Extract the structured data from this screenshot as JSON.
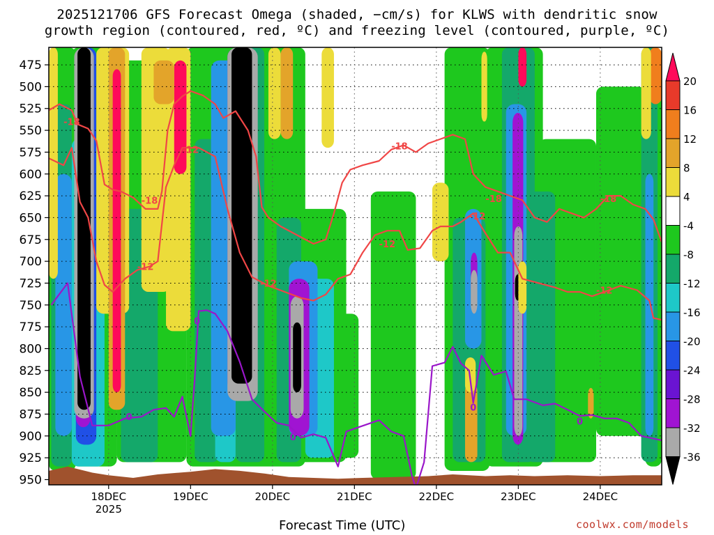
{
  "title_line1": "2025121706 GFS Forecast Omega (shaded, −cm/s) for KLWS with dendritic snow",
  "title_line2": "growth region (contoured, red, ºC) and freezing level (contoured, purple, ºC)",
  "xlabel": "Forecast Time (UTC)",
  "credit": "coolwx.com/models",
  "chart_data": {
    "type": "heatmap",
    "title": "2025121706 GFS Forecast Omega (shaded, −cm/s) for KLWS with dendritic snow growth region (contoured, red, ºC) and freezing level (contoured, purple, ºC)",
    "xlabel": "Forecast Time (UTC)",
    "ylabel": "",
    "x_tick_labels": [
      "18DEC",
      "19DEC",
      "20DEC",
      "21DEC",
      "22DEC",
      "23DEC",
      "24DEC"
    ],
    "x_tick_sublabel": "2025",
    "x_range_days": [
      17.27,
      24.75
    ],
    "y_tick_labels": [
      475,
      500,
      525,
      550,
      575,
      600,
      625,
      650,
      675,
      700,
      725,
      750,
      775,
      800,
      825,
      850,
      875,
      900,
      925,
      950
    ],
    "y_range_hpa": [
      455,
      956
    ],
    "grid": true,
    "colorbar": {
      "label_values": [
        20,
        16,
        12,
        8,
        4,
        -4,
        -8,
        -12,
        -16,
        -20,
        -24,
        -28,
        -32,
        -36
      ],
      "colors": [
        "#ff0a5a",
        "#e83a2a",
        "#f07e1d",
        "#e3a42a",
        "#ecdc3a",
        "#ffffff",
        "#1ec81e",
        "#14a86a",
        "#1ec8c8",
        "#2896e6",
        "#2050e6",
        "#6a14d2",
        "#a014d2",
        "#a9a9a9",
        "#000000"
      ]
    },
    "freezing_level_contour": {
      "label": "0",
      "color": "#9a16c9",
      "points": [
        [
          17.3,
          750
        ],
        [
          17.5,
          725
        ],
        [
          17.65,
          832
        ],
        [
          17.8,
          888
        ],
        [
          18.0,
          888
        ],
        [
          18.2,
          880
        ],
        [
          18.4,
          878
        ],
        [
          18.55,
          870
        ],
        [
          18.7,
          868
        ],
        [
          18.8,
          878
        ],
        [
          18.9,
          855
        ],
        [
          19.0,
          900
        ],
        [
          19.05,
          835
        ],
        [
          19.1,
          757
        ],
        [
          19.2,
          756
        ],
        [
          19.3,
          760
        ],
        [
          19.45,
          780
        ],
        [
          19.6,
          815
        ],
        [
          19.75,
          858
        ],
        [
          19.9,
          872
        ],
        [
          20.05,
          885
        ],
        [
          20.2,
          888
        ],
        [
          20.35,
          902
        ],
        [
          20.5,
          898
        ],
        [
          20.65,
          902
        ],
        [
          20.8,
          935
        ],
        [
          20.9,
          895
        ],
        [
          21.05,
          890
        ],
        [
          21.3,
          882
        ],
        [
          21.45,
          895
        ],
        [
          21.6,
          900
        ],
        [
          21.7,
          945
        ],
        [
          21.75,
          960
        ],
        [
          21.85,
          930
        ],
        [
          21.95,
          820
        ],
        [
          22.1,
          816
        ],
        [
          22.2,
          798
        ],
        [
          22.3,
          817
        ],
        [
          22.4,
          825
        ],
        [
          22.45,
          862
        ],
        [
          22.55,
          808
        ],
        [
          22.7,
          830
        ],
        [
          22.85,
          826
        ],
        [
          22.95,
          858
        ],
        [
          23.1,
          858
        ],
        [
          23.3,
          865
        ],
        [
          23.45,
          863
        ],
        [
          23.6,
          870
        ],
        [
          23.75,
          877
        ],
        [
          23.9,
          876
        ],
        [
          24.05,
          880
        ],
        [
          24.2,
          880
        ],
        [
          24.35,
          885
        ],
        [
          24.5,
          900
        ],
        [
          24.75,
          905
        ]
      ],
      "label_positions": [
        [
          18.25,
          878
        ],
        [
          19.08,
          768
        ],
        [
          20.25,
          901
        ],
        [
          22.45,
          867
        ],
        [
          23.75,
          883
        ]
      ]
    },
    "snow_growth_contours": [
      {
        "label": "-18",
        "color": "#f04646",
        "points": [
          [
            17.27,
            527
          ],
          [
            17.4,
            520
          ],
          [
            17.55,
            527
          ],
          [
            17.62,
            543
          ],
          [
            17.75,
            548
          ],
          [
            17.85,
            562
          ],
          [
            17.95,
            612
          ],
          [
            18.05,
            618
          ],
          [
            18.15,
            620
          ],
          [
            18.3,
            627
          ],
          [
            18.45,
            640
          ],
          [
            18.6,
            640
          ],
          [
            18.65,
            620
          ],
          [
            18.72,
            550
          ],
          [
            18.8,
            520
          ],
          [
            18.9,
            511
          ],
          [
            19.0,
            505
          ],
          [
            19.15,
            510
          ],
          [
            19.3,
            520
          ],
          [
            19.4,
            536
          ],
          [
            19.55,
            528
          ],
          [
            19.7,
            550
          ],
          [
            19.8,
            580
          ],
          [
            19.87,
            638
          ],
          [
            19.95,
            650
          ],
          [
            20.1,
            660
          ],
          [
            20.3,
            670
          ],
          [
            20.5,
            680
          ],
          [
            20.65,
            675
          ],
          [
            20.75,
            645
          ],
          [
            20.85,
            610
          ],
          [
            20.95,
            595
          ],
          [
            21.1,
            590
          ],
          [
            21.3,
            585
          ],
          [
            21.45,
            572
          ],
          [
            21.6,
            567
          ],
          [
            21.75,
            575
          ],
          [
            21.9,
            565
          ],
          [
            22.05,
            560
          ],
          [
            22.2,
            555
          ],
          [
            22.35,
            560
          ],
          [
            22.45,
            600
          ],
          [
            22.6,
            615
          ],
          [
            22.75,
            620
          ],
          [
            22.9,
            625
          ],
          [
            23.05,
            630
          ],
          [
            23.2,
            650
          ],
          [
            23.35,
            655
          ],
          [
            23.5,
            640
          ],
          [
            23.65,
            645
          ],
          [
            23.8,
            650
          ],
          [
            23.95,
            640
          ],
          [
            24.1,
            625
          ],
          [
            24.25,
            625
          ],
          [
            24.4,
            635
          ],
          [
            24.55,
            640
          ],
          [
            24.65,
            652
          ],
          [
            24.75,
            678
          ]
        ],
        "label_positions": [
          [
            17.55,
            540
          ],
          [
            18.5,
            630
          ],
          [
            21.55,
            568
          ],
          [
            22.7,
            628
          ],
          [
            24.1,
            628
          ]
        ]
      },
      {
        "label": "-12",
        "color": "#f04646",
        "points": [
          [
            17.27,
            582
          ],
          [
            17.45,
            590
          ],
          [
            17.55,
            570
          ],
          [
            17.65,
            632
          ],
          [
            17.75,
            650
          ],
          [
            17.85,
            700
          ],
          [
            17.95,
            727
          ],
          [
            18.05,
            735
          ],
          [
            18.2,
            720
          ],
          [
            18.35,
            710
          ],
          [
            18.5,
            706
          ],
          [
            18.6,
            700
          ],
          [
            18.7,
            615
          ],
          [
            18.8,
            590
          ],
          [
            18.9,
            570
          ],
          [
            19.1,
            570
          ],
          [
            19.3,
            580
          ],
          [
            19.45,
            640
          ],
          [
            19.6,
            690
          ],
          [
            19.75,
            718
          ],
          [
            19.95,
            728
          ],
          [
            20.15,
            735
          ],
          [
            20.35,
            742
          ],
          [
            20.5,
            745
          ],
          [
            20.65,
            738
          ],
          [
            20.8,
            720
          ],
          [
            20.95,
            715
          ],
          [
            21.1,
            690
          ],
          [
            21.25,
            670
          ],
          [
            21.4,
            665
          ],
          [
            21.55,
            665
          ],
          [
            21.65,
            687
          ],
          [
            21.8,
            685
          ],
          [
            21.95,
            665
          ],
          [
            22.05,
            660
          ],
          [
            22.2,
            660
          ],
          [
            22.3,
            655
          ],
          [
            22.45,
            645
          ],
          [
            22.6,
            668
          ],
          [
            22.75,
            690
          ],
          [
            22.9,
            690
          ],
          [
            23.05,
            720
          ],
          [
            23.25,
            725
          ],
          [
            23.45,
            730
          ],
          [
            23.6,
            735
          ],
          [
            23.75,
            735
          ],
          [
            23.9,
            740
          ],
          [
            24.05,
            735
          ],
          [
            24.25,
            728
          ],
          [
            24.45,
            733
          ],
          [
            24.6,
            745
          ],
          [
            24.65,
            765
          ],
          [
            24.75,
            767
          ]
        ],
        "label_positions": [
          [
            18.45,
            706
          ],
          [
            19.0,
            572
          ],
          [
            19.95,
            725
          ],
          [
            21.4,
            680
          ],
          [
            22.5,
            648
          ],
          [
            24.05,
            733
          ]
        ]
      }
    ]
  }
}
